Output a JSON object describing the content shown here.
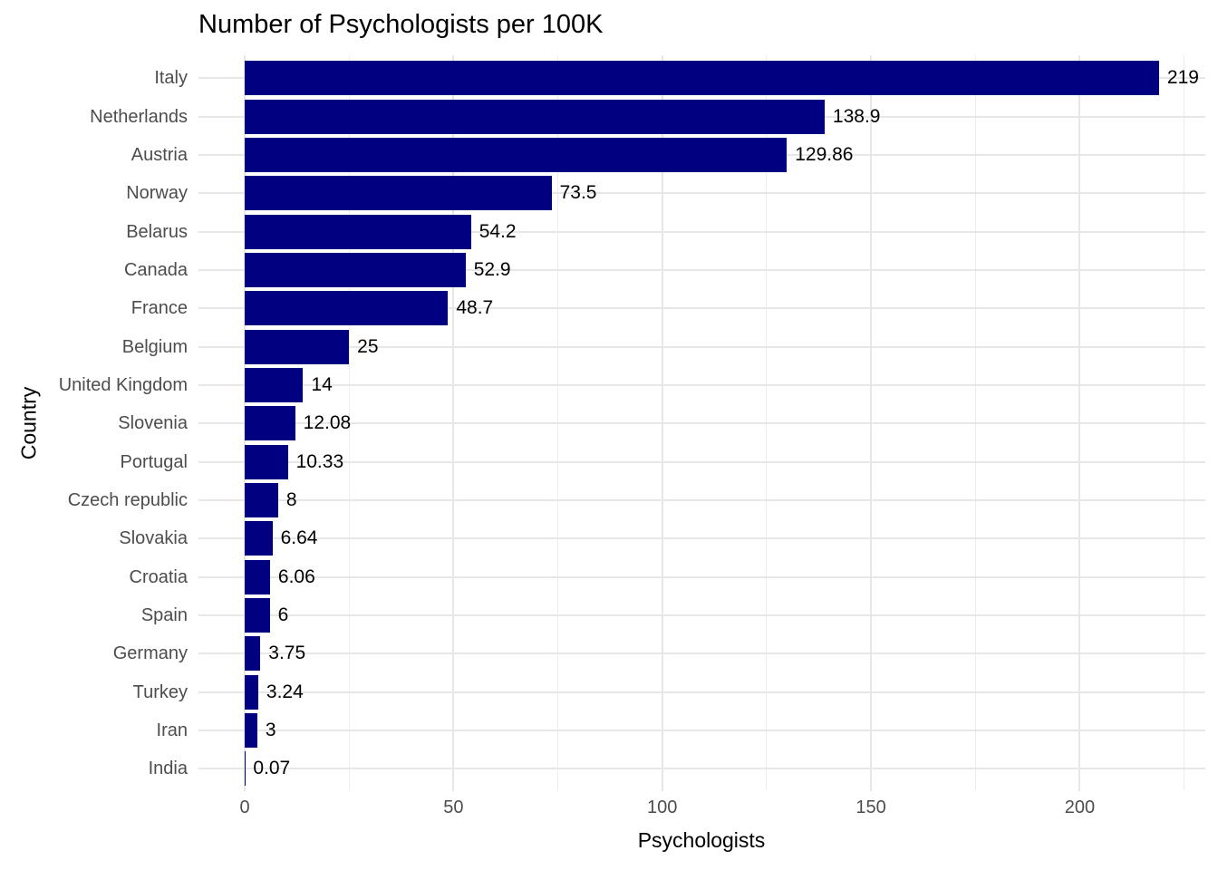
{
  "title": "Number of Psychologists per 100K",
  "x_axis": {
    "label": "Psychologists",
    "major_ticks": [
      0,
      50,
      100,
      150,
      200
    ],
    "minor_ticks": [
      25,
      75,
      125,
      175,
      225
    ],
    "range": [
      -11,
      230
    ]
  },
  "y_axis": {
    "label": "Country"
  },
  "colors": {
    "bar_fill": "#000080",
    "grid_major": "#e7e7e7",
    "grid_minor": "#ededed",
    "axis_text": "#4d4d4d",
    "title_text": "#000000",
    "background": "#ffffff"
  },
  "chart_data": {
    "type": "bar",
    "orientation": "horizontal",
    "title": "Number of Psychologists per 100K",
    "xlabel": "Psychologists",
    "ylabel": "Country",
    "xlim": [
      0,
      230
    ],
    "grid": true,
    "legend": false,
    "bar_color": "#000080",
    "categories": [
      "Italy",
      "Netherlands",
      "Austria",
      "Norway",
      "Belarus",
      "Canada",
      "France",
      "Belgium",
      "United Kingdom",
      "Slovenia",
      "Portugal",
      "Czech republic",
      "Slovakia",
      "Croatia",
      "Spain",
      "Germany",
      "Turkey",
      "Iran",
      "India"
    ],
    "values": [
      219,
      138.9,
      129.86,
      73.5,
      54.2,
      52.9,
      48.7,
      25,
      14,
      12.08,
      10.33,
      8,
      6.64,
      6.06,
      6,
      3.75,
      3.24,
      3,
      0.07
    ],
    "value_labels": [
      "219",
      "138.9",
      "129.86",
      "73.5",
      "54.2",
      "52.9",
      "48.7",
      "25",
      "14",
      "12.08",
      "10.33",
      "8",
      "6.64",
      "6.06",
      "6",
      "3.75",
      "3.24",
      "3",
      "0.07"
    ]
  }
}
